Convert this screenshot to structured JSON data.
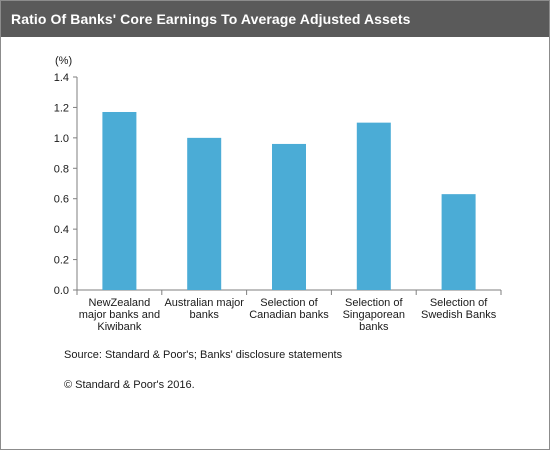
{
  "title": "Ratio Of Banks' Core Earnings To Average Adjusted Assets",
  "source": "Source: Standard & Poor's; Banks' disclosure statements",
  "copyright": "© Standard & Poor's 2016.",
  "colors": {
    "bar": "#4bacd6",
    "title_bg": "#5a5a5a"
  },
  "chart_data": {
    "type": "bar",
    "ylabel": "(%)",
    "ylim": [
      0,
      1.4
    ],
    "yticks": [
      "0.0",
      "0.2",
      "0.4",
      "0.6",
      "0.8",
      "1.0",
      "1.2",
      "1.4"
    ],
    "categories": [
      [
        "NewZealand",
        "major banks and",
        "Kiwibank"
      ],
      [
        "Australian major",
        "banks"
      ],
      [
        "Selection of",
        "Canadian banks"
      ],
      [
        "Selection of",
        "Singaporean",
        "banks"
      ],
      [
        "Selection of",
        "Swedish Banks"
      ]
    ],
    "values": [
      1.17,
      1.0,
      0.96,
      1.1,
      0.63
    ],
    "grid": false,
    "legend": "none"
  }
}
